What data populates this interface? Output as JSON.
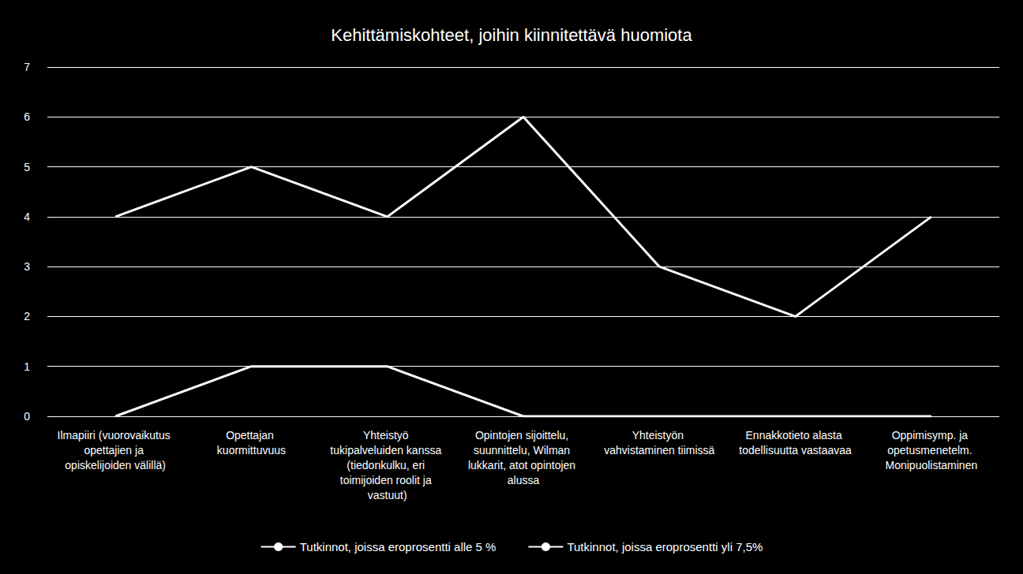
{
  "chart_data": {
    "type": "line",
    "title": "Kehittämiskohteet, joihin kiinnitettävä huomiota",
    "categories": [
      "Ilmapiiri (vuorovaikutus opettajien ja opiskelijoiden välillä)",
      "Opettajan kuormittuvuus",
      "Yhteistyö tukipalveluiden kanssa (tiedonkulku, eri toimijoiden roolit ja vastuut)",
      "Opintojen sijoittelu, suunnittelu, Wilman lukkarit, atot opintojen alussa",
      "Yhteistyön vahvistaminen tiimissä",
      "Ennakkotieto alasta todellisuutta vastaavaa",
      "Oppimisymp. ja opetusmenetelm. Monipuolistaminen"
    ],
    "series": [
      {
        "name": "Tutkinnot, joissa eroprosentti alle 5 %",
        "color": "#ffffff",
        "values": [
          4,
          5,
          4,
          6,
          3,
          2,
          4
        ]
      },
      {
        "name": "Tutkinnot, joissa eroprosentti yli 7,5%",
        "color": "#ffffff",
        "values": [
          0,
          1,
          1,
          0,
          0,
          0,
          0
        ]
      }
    ],
    "ylim": [
      0,
      7
    ],
    "yticks": [
      0,
      1,
      2,
      3,
      4,
      5,
      6,
      7
    ],
    "grid": true,
    "legend": "bottom",
    "marker": "none"
  }
}
